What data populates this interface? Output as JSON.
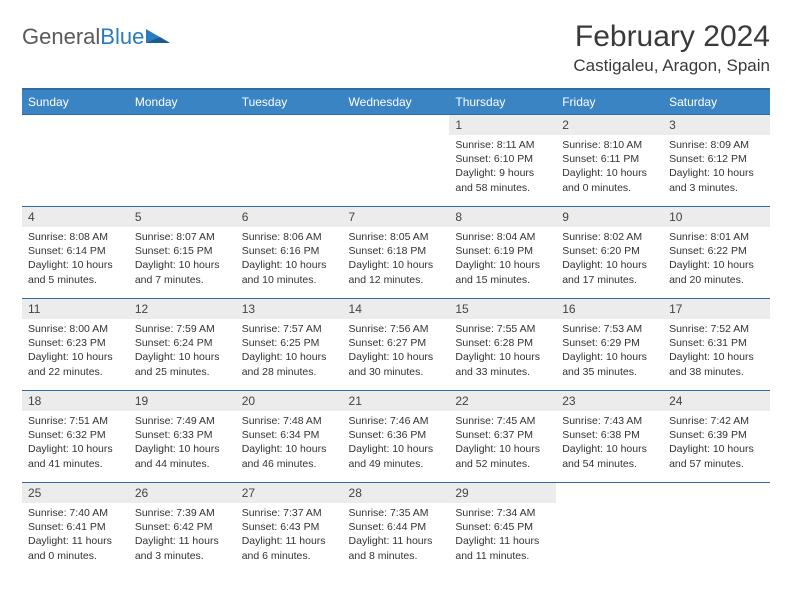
{
  "logo": {
    "word1": "General",
    "word2": "Blue"
  },
  "title": "February 2024",
  "location": "Castigaleu, Aragon, Spain",
  "dow": [
    "Sunday",
    "Monday",
    "Tuesday",
    "Wednesday",
    "Thursday",
    "Friday",
    "Saturday"
  ],
  "colors": {
    "header_bg": "#3b84c4",
    "header_border": "#2f6ba0",
    "daynum_bg": "#ececec",
    "logo_gray": "#5a5a5a",
    "logo_blue": "#2b7bbf"
  },
  "layout": {
    "first_weekday_index": 4,
    "days_in_month": 29
  },
  "days": {
    "1": {
      "sunrise": "8:11 AM",
      "sunset": "6:10 PM",
      "daylight": "9 hours and 58 minutes."
    },
    "2": {
      "sunrise": "8:10 AM",
      "sunset": "6:11 PM",
      "daylight": "10 hours and 0 minutes."
    },
    "3": {
      "sunrise": "8:09 AM",
      "sunset": "6:12 PM",
      "daylight": "10 hours and 3 minutes."
    },
    "4": {
      "sunrise": "8:08 AM",
      "sunset": "6:14 PM",
      "daylight": "10 hours and 5 minutes."
    },
    "5": {
      "sunrise": "8:07 AM",
      "sunset": "6:15 PM",
      "daylight": "10 hours and 7 minutes."
    },
    "6": {
      "sunrise": "8:06 AM",
      "sunset": "6:16 PM",
      "daylight": "10 hours and 10 minutes."
    },
    "7": {
      "sunrise": "8:05 AM",
      "sunset": "6:18 PM",
      "daylight": "10 hours and 12 minutes."
    },
    "8": {
      "sunrise": "8:04 AM",
      "sunset": "6:19 PM",
      "daylight": "10 hours and 15 minutes."
    },
    "9": {
      "sunrise": "8:02 AM",
      "sunset": "6:20 PM",
      "daylight": "10 hours and 17 minutes."
    },
    "10": {
      "sunrise": "8:01 AM",
      "sunset": "6:22 PM",
      "daylight": "10 hours and 20 minutes."
    },
    "11": {
      "sunrise": "8:00 AM",
      "sunset": "6:23 PM",
      "daylight": "10 hours and 22 minutes."
    },
    "12": {
      "sunrise": "7:59 AM",
      "sunset": "6:24 PM",
      "daylight": "10 hours and 25 minutes."
    },
    "13": {
      "sunrise": "7:57 AM",
      "sunset": "6:25 PM",
      "daylight": "10 hours and 28 minutes."
    },
    "14": {
      "sunrise": "7:56 AM",
      "sunset": "6:27 PM",
      "daylight": "10 hours and 30 minutes."
    },
    "15": {
      "sunrise": "7:55 AM",
      "sunset": "6:28 PM",
      "daylight": "10 hours and 33 minutes."
    },
    "16": {
      "sunrise": "7:53 AM",
      "sunset": "6:29 PM",
      "daylight": "10 hours and 35 minutes."
    },
    "17": {
      "sunrise": "7:52 AM",
      "sunset": "6:31 PM",
      "daylight": "10 hours and 38 minutes."
    },
    "18": {
      "sunrise": "7:51 AM",
      "sunset": "6:32 PM",
      "daylight": "10 hours and 41 minutes."
    },
    "19": {
      "sunrise": "7:49 AM",
      "sunset": "6:33 PM",
      "daylight": "10 hours and 44 minutes."
    },
    "20": {
      "sunrise": "7:48 AM",
      "sunset": "6:34 PM",
      "daylight": "10 hours and 46 minutes."
    },
    "21": {
      "sunrise": "7:46 AM",
      "sunset": "6:36 PM",
      "daylight": "10 hours and 49 minutes."
    },
    "22": {
      "sunrise": "7:45 AM",
      "sunset": "6:37 PM",
      "daylight": "10 hours and 52 minutes."
    },
    "23": {
      "sunrise": "7:43 AM",
      "sunset": "6:38 PM",
      "daylight": "10 hours and 54 minutes."
    },
    "24": {
      "sunrise": "7:42 AM",
      "sunset": "6:39 PM",
      "daylight": "10 hours and 57 minutes."
    },
    "25": {
      "sunrise": "7:40 AM",
      "sunset": "6:41 PM",
      "daylight": "11 hours and 0 minutes."
    },
    "26": {
      "sunrise": "7:39 AM",
      "sunset": "6:42 PM",
      "daylight": "11 hours and 3 minutes."
    },
    "27": {
      "sunrise": "7:37 AM",
      "sunset": "6:43 PM",
      "daylight": "11 hours and 6 minutes."
    },
    "28": {
      "sunrise": "7:35 AM",
      "sunset": "6:44 PM",
      "daylight": "11 hours and 8 minutes."
    },
    "29": {
      "sunrise": "7:34 AM",
      "sunset": "6:45 PM",
      "daylight": "11 hours and 11 minutes."
    }
  },
  "labels": {
    "sunrise": "Sunrise: ",
    "sunset": "Sunset: ",
    "daylight": "Daylight: "
  }
}
